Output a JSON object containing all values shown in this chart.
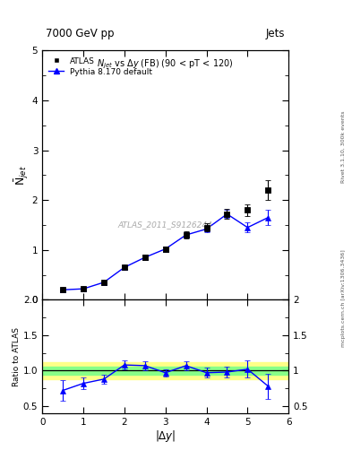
{
  "title_top": "7000 GeV pp",
  "title_right": "Jets",
  "plot_title": "N$_{jet}$ vs $\\Delta$y (FB) (90 < pT < 120)",
  "watermark": "ATLAS_2011_S9126244",
  "right_label_top": "Rivet 3.1.10, 300k events",
  "right_label_bot": "mcplots.cern.ch [arXiv:1306.3436]",
  "atlas_x": [
    0.5,
    1.0,
    1.5,
    2.0,
    2.5,
    3.0,
    3.5,
    4.0,
    4.5,
    5.0,
    5.5
  ],
  "atlas_y": [
    0.2,
    0.22,
    0.35,
    0.65,
    0.85,
    1.02,
    1.3,
    1.45,
    1.72,
    1.8,
    2.2
  ],
  "atlas_yerr": [
    0.015,
    0.018,
    0.025,
    0.04,
    0.05,
    0.055,
    0.07,
    0.08,
    0.1,
    0.12,
    0.2
  ],
  "pythia_x": [
    0.5,
    1.0,
    1.5,
    2.0,
    2.5,
    3.0,
    3.5,
    4.0,
    4.5,
    5.0,
    5.5
  ],
  "pythia_y": [
    0.2,
    0.22,
    0.35,
    0.65,
    0.85,
    1.02,
    1.3,
    1.42,
    1.72,
    1.45,
    1.65
  ],
  "pythia_yerr": [
    0.01,
    0.01,
    0.015,
    0.025,
    0.035,
    0.04,
    0.05,
    0.06,
    0.08,
    0.1,
    0.15
  ],
  "ratio_x": [
    0.5,
    1.0,
    1.5,
    2.0,
    2.5,
    3.0,
    3.5,
    4.0,
    4.5,
    5.0,
    5.5
  ],
  "ratio_y": [
    0.72,
    0.82,
    0.88,
    1.08,
    1.07,
    0.97,
    1.07,
    0.97,
    0.98,
    1.02,
    0.78
  ],
  "ratio_yerr": [
    0.15,
    0.08,
    0.06,
    0.06,
    0.06,
    0.05,
    0.06,
    0.07,
    0.08,
    0.12,
    0.18
  ],
  "band_yellow_low": 0.88,
  "band_yellow_high": 1.12,
  "band_green_low": 0.94,
  "band_green_high": 1.06,
  "main_ylim": [
    0.0,
    5.0
  ],
  "ratio_ylim": [
    0.4,
    2.0
  ],
  "xlim": [
    0.0,
    6.0
  ],
  "main_ylabel": "$\\mathregular{\\bar{N}}_{jet}$",
  "ratio_ylabel": "Ratio to ATLAS",
  "xlabel": "$|\\Delta y|$",
  "atlas_color": "black",
  "pythia_color": "blue",
  "band_yellow_color": "#ffff88",
  "band_green_color": "#88ff88",
  "background_color": "white"
}
